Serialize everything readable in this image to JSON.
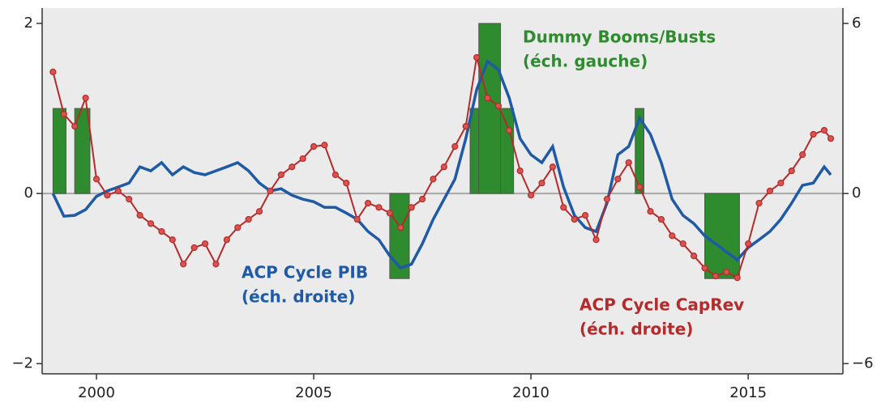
{
  "chart_data": {
    "type": "line",
    "xlim": [
      1998.75,
      2017.18
    ],
    "ylim": [
      -2.12,
      2.18
    ],
    "y2lim": [
      -6.36,
      6.54
    ],
    "xticks": [
      2000,
      2005,
      2010,
      2015
    ],
    "yticks": [
      {
        "value": -2,
        "label": "−2"
      },
      0,
      2
    ],
    "y2ticks": [
      {
        "value": -6,
        "label": "−6"
      },
      0,
      6
    ],
    "zero_line": true,
    "bars": {
      "name": "Dummy Booms/Busts",
      "color": "#2e8b2e",
      "x0": [
        1999.0,
        1999.5,
        2006.75,
        2008.6,
        2008.8,
        2009.3,
        2012.4,
        2014.0
      ],
      "x1": [
        1999.3,
        1999.85,
        2007.2,
        2008.8,
        2009.3,
        2009.6,
        2012.6,
        2014.8
      ],
      "values": [
        1,
        1,
        -1,
        1,
        2,
        1,
        1,
        -1
      ]
    },
    "x": [
      1999.0,
      1999.25,
      1999.5,
      1999.75,
      2000.0,
      2000.25,
      2000.5,
      2000.75,
      2001.0,
      2001.25,
      2001.5,
      2001.75,
      2002.0,
      2002.25,
      2002.5,
      2002.75,
      2003.0,
      2003.25,
      2003.5,
      2003.75,
      2004.0,
      2004.25,
      2004.5,
      2004.75,
      2005.0,
      2005.25,
      2005.5,
      2005.75,
      2006.0,
      2006.25,
      2006.5,
      2006.75,
      2007.0,
      2007.25,
      2007.5,
      2007.75,
      2008.0,
      2008.25,
      2008.5,
      2008.75,
      2009.0,
      2009.25,
      2009.5,
      2009.75,
      2010.0,
      2010.25,
      2010.5,
      2010.75,
      2011.0,
      2011.25,
      2011.5,
      2011.75,
      2012.0,
      2012.25,
      2012.5,
      2012.75,
      2013.0,
      2013.25,
      2013.5,
      2013.75,
      2014.0,
      2014.25,
      2014.5,
      2014.75,
      2015.0,
      2015.25,
      2015.5,
      2015.75,
      2016.0,
      2016.25,
      2016.5,
      2016.75,
      2016.9
    ],
    "series": [
      {
        "name": "ACP Cycle PIB",
        "color": "#1f5aa6",
        "axis": "y2",
        "markers": false,
        "values": [
          0,
          -0.8,
          -0.77,
          -0.57,
          -0.1,
          0.09,
          0.23,
          0.37,
          0.94,
          0.8,
          1.09,
          0.66,
          0.94,
          0.74,
          0.66,
          0.8,
          0.94,
          1.09,
          0.8,
          0.37,
          0.09,
          0.17,
          -0.06,
          -0.2,
          -0.29,
          -0.49,
          -0.49,
          -0.69,
          -0.91,
          -1.34,
          -1.63,
          -2.2,
          -2.63,
          -2.49,
          -1.77,
          -0.91,
          -0.2,
          0.51,
          1.94,
          3.66,
          4.66,
          4.37,
          3.37,
          1.94,
          1.37,
          1.09,
          1.66,
          0.23,
          -0.77,
          -1.2,
          -1.34,
          -0.34,
          1.37,
          1.66,
          2.66,
          2.09,
          1.09,
          -0.2,
          -0.77,
          -1.06,
          -1.49,
          -1.77,
          -2.06,
          -2.34,
          -1.91,
          -1.63,
          -1.34,
          -0.91,
          -0.34,
          0.29,
          0.37,
          0.94,
          0.66
        ]
      },
      {
        "name": "ACP Cycle CapRev",
        "color": "#b52a2a",
        "axis": "y2",
        "markers": true,
        "values": [
          4.29,
          2.8,
          2.37,
          3.37,
          0.51,
          -0.06,
          0.09,
          -0.2,
          -0.77,
          -1.06,
          -1.34,
          -1.63,
          -2.49,
          -1.91,
          -1.77,
          -2.49,
          -1.63,
          -1.2,
          -0.91,
          -0.63,
          0.09,
          0.66,
          0.94,
          1.23,
          1.66,
          1.71,
          0.66,
          0.37,
          -0.91,
          -0.34,
          -0.49,
          -0.69,
          -1.2,
          -0.49,
          -0.2,
          0.51,
          0.94,
          1.66,
          2.37,
          4.8,
          3.37,
          3.09,
          2.23,
          0.8,
          -0.06,
          0.37,
          0.94,
          -0.49,
          -0.91,
          -0.77,
          -1.63,
          -0.2,
          0.51,
          1.09,
          0.23,
          -0.63,
          -0.91,
          -1.49,
          -1.77,
          -2.2,
          -2.63,
          -2.91,
          -2.77,
          -2.97,
          -1.77,
          -0.34,
          0.09,
          0.37,
          0.8,
          1.37,
          2.09,
          2.23,
          1.94
        ]
      }
    ],
    "annotations": [
      {
        "lines": [
          "Dummy Booms/Busts",
          "(éch. gauche)"
        ],
        "color": "#2e8b2e"
      },
      {
        "lines": [
          "ACP Cycle PIB",
          "(éch. droite)"
        ],
        "color": "#1f5aa6"
      },
      {
        "lines": [
          "ACP Cycle CapRev",
          "(éch. droite)"
        ],
        "color": "#b52a2a"
      }
    ]
  }
}
